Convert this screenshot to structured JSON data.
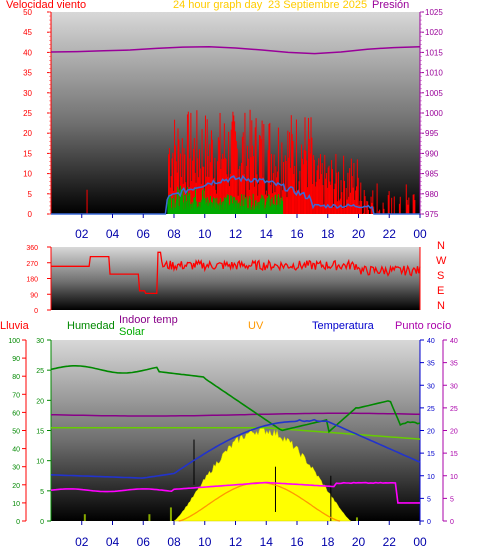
{
  "header": {
    "left_label": "Velocidad viento",
    "title": "24 hour graph day",
    "date": "23 Septiembre 2025",
    "right_label": "Presión"
  },
  "legend": {
    "lluvia": "Lluvia",
    "humedad": "Humedad",
    "indoor": "Indoor temp",
    "solar": "Solar",
    "uv": "UV",
    "temperatura": "Temperatura",
    "punto_rocio": "Punto rocío"
  },
  "compass": [
    "N",
    "W",
    "S",
    "E",
    "N"
  ],
  "colors": {
    "wind_gust": "#ff0000",
    "wind_avg": "#3a6ad8",
    "wind_green": "#00aa00",
    "pressure": "#990099",
    "direction": "#ff0000",
    "humidity": "#008800",
    "indoor_temp": "#88aa00",
    "solar": "#ffff00",
    "uv": "#ff9900",
    "temperature": "#2233cc",
    "dew_point": "#ff00ff",
    "rain_axis": "#ff0000",
    "dew_axis": "#aa00aa"
  },
  "chart_data": [
    {
      "type": "line",
      "name": "wind_pressure",
      "x_ticks": [
        "02",
        "04",
        "06",
        "08",
        "10",
        "12",
        "14",
        "16",
        "18",
        "20",
        "22",
        "00"
      ],
      "left_ticks": [
        "0",
        "5",
        "10",
        "15",
        "20",
        "25",
        "30",
        "35",
        "40",
        "45",
        "50"
      ],
      "right_ticks": [
        "975",
        "980",
        "985",
        "990",
        "995",
        "1000",
        "1005",
        "1010",
        "1015",
        "1020",
        "1025"
      ],
      "ylim_left": [
        0,
        50
      ],
      "ylim_right": [
        975,
        1025
      ],
      "series": [
        {
          "key": "pressure",
          "values": [
            1015.1,
            1015.2,
            1015.4,
            1015.6,
            1016.0,
            1016.3,
            1016.4,
            1016.1,
            1015.6,
            1015.0,
            1014.7,
            1015.1,
            1015.8,
            1016.2,
            1016.4
          ]
        }
      ]
    },
    {
      "type": "line",
      "name": "wind_direction",
      "ylim": [
        0,
        360
      ],
      "y_ticks": [
        "0",
        "90",
        "180",
        "270",
        "360"
      ]
    },
    {
      "type": "line",
      "name": "temperature_humidity",
      "rain_ticks": [
        "0",
        "10",
        "20",
        "30",
        "40",
        "50",
        "60",
        "70",
        "80",
        "90",
        "100"
      ],
      "humidity_ticks": [
        "0",
        "5",
        "10",
        "15",
        "20",
        "25",
        "30"
      ],
      "temp_ticks": [
        "0",
        "5",
        "10",
        "15",
        "20",
        "25",
        "30",
        "35",
        "40"
      ],
      "dew_ticks": [
        "0",
        "5",
        "10",
        "15",
        "20",
        "25",
        "30",
        "35",
        "40"
      ],
      "x_ticks": [
        "02",
        "04",
        "06",
        "08",
        "10",
        "12",
        "14",
        "16",
        "18",
        "20",
        "22",
        "00"
      ]
    }
  ]
}
